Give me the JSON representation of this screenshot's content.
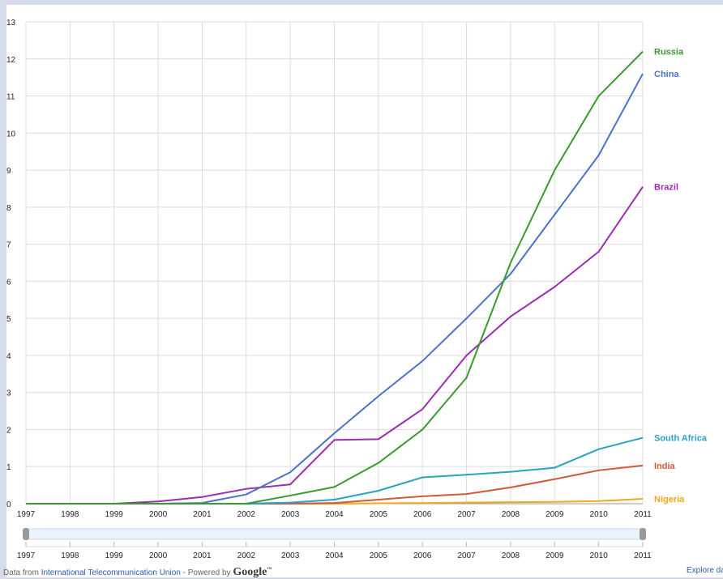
{
  "chart_data": {
    "type": "line",
    "x": [
      1997,
      1998,
      1999,
      2000,
      2001,
      2002,
      2003,
      2004,
      2005,
      2006,
      2007,
      2008,
      2009,
      2010,
      2011
    ],
    "ylim": [
      0,
      13
    ],
    "yticks": [
      0,
      1,
      2,
      3,
      4,
      5,
      6,
      7,
      8,
      9,
      10,
      11,
      12,
      13
    ],
    "grid": true,
    "legend": "right, inline labels at line ends",
    "series": [
      {
        "name": "Russia",
        "color": "#3a9a2c",
        "values": [
          0,
          0,
          0,
          0,
          0,
          0,
          0.22,
          0.45,
          1.1,
          2.0,
          3.4,
          6.5,
          9.0,
          11.0,
          12.2
        ]
      },
      {
        "name": "China",
        "color": "#4a74c8",
        "values": [
          0,
          0,
          0,
          0,
          0.02,
          0.25,
          0.85,
          1.9,
          2.9,
          3.85,
          5.0,
          6.2,
          7.8,
          9.4,
          11.6
        ]
      },
      {
        "name": "Brazil",
        "color": "#9b2db0",
        "values": [
          0,
          0,
          0,
          0.06,
          0.18,
          0.4,
          0.52,
          1.72,
          1.74,
          2.55,
          4.0,
          5.05,
          5.85,
          6.8,
          8.55
        ]
      },
      {
        "name": "South Africa",
        "color": "#2aa2c2",
        "values": [
          0,
          0,
          0,
          0,
          0,
          0,
          0.03,
          0.11,
          0.35,
          0.71,
          0.78,
          0.86,
          0.97,
          1.47,
          1.78
        ]
      },
      {
        "name": "India",
        "color": "#cf5a36",
        "values": [
          0,
          0,
          0,
          0,
          0,
          0,
          0,
          0.02,
          0.11,
          0.2,
          0.26,
          0.44,
          0.66,
          0.9,
          1.03
        ]
      },
      {
        "name": "Nigeria",
        "color": "#f0a81c",
        "values": [
          0,
          0,
          0,
          0,
          0,
          0,
          0,
          0,
          0.01,
          0.02,
          0.03,
          0.04,
          0.05,
          0.07,
          0.13
        ]
      }
    ]
  },
  "footer": {
    "prefix": "Data from",
    "source_link": "International Telecommunication Union",
    "powered_by": " - Powered by",
    "google": "Google",
    "tm": "™",
    "explore": "Explore data"
  }
}
